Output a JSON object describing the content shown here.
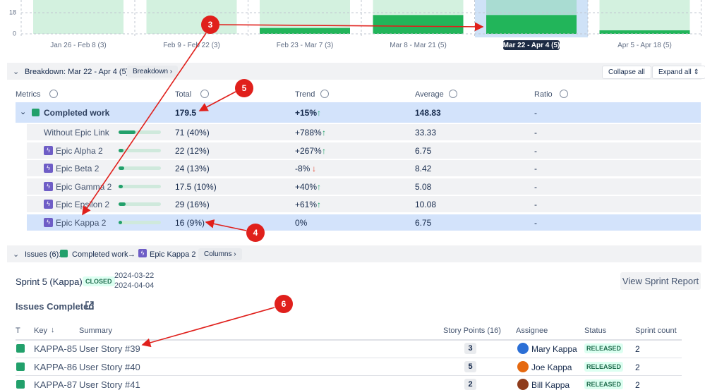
{
  "sprint_chart": {
    "categories": [
      "Jan 26 - Feb 8 (3)",
      "Feb 9 - Feb 22 (3)",
      "Feb 23 - Mar 7 (3)",
      "Mar 8 - Mar 21 (5)",
      "Mar 22 - Apr 4 (5)",
      "Apr 5 - Apr 18 (5)"
    ],
    "completed": [
      0,
      0,
      5,
      16,
      16,
      3
    ],
    "yticks": [
      0,
      18
    ],
    "ylim": [
      0,
      28.8
    ],
    "selected": 4
  },
  "breakdown_bar": {
    "label": "Breakdown: Mar 22 - Apr 4 (5)",
    "button": "Breakdown",
    "collapse": "Collapse all",
    "expand": "Expand all"
  },
  "metrics_table": {
    "headers": [
      "Metrics",
      "Total",
      "Trend",
      "Average",
      "Ratio"
    ],
    "group": {
      "name": "Completed work",
      "total": "179.5",
      "trend": "+15%",
      "trend_arrow": "↑",
      "average": "148.83",
      "ratio": "-"
    },
    "rows": [
      {
        "name": "Without Epic Link",
        "epic": false,
        "total": "71 (40%)",
        "trend": "+788%",
        "trend_arrow": "↑",
        "average": "33.33",
        "ratio": "-"
      },
      {
        "name": "Epic Alpha 2",
        "epic": true,
        "total": "22 (12%)",
        "trend": "+267%",
        "trend_arrow": "↑",
        "average": "6.75",
        "ratio": "-"
      },
      {
        "name": "Epic Beta 2",
        "epic": true,
        "total": "24 (13%)",
        "trend": "-8%",
        "trend_arrow": "↓",
        "average": "8.42",
        "ratio": "-"
      },
      {
        "name": "Epic Gamma 2",
        "epic": true,
        "total": "17.5 (10%)",
        "trend": "+40%",
        "trend_arrow": "↑",
        "average": "5.08",
        "ratio": "-"
      },
      {
        "name": "Epic Epsilon 2",
        "epic": true,
        "total": "29 (16%)",
        "trend": "+61%",
        "trend_arrow": "↑",
        "average": "10.08",
        "ratio": "-"
      },
      {
        "name": "Epic Kappa 2",
        "epic": true,
        "total": "16 (9%)",
        "trend": "0%",
        "average": "6.75",
        "ratio": "-"
      }
    ],
    "selected_row": 5
  },
  "issues_bar": {
    "label": "Issues (6):",
    "metric": "Completed work",
    "arrow": "→",
    "epic": "Epic Kappa 2",
    "button": "Columns"
  },
  "sprint": {
    "name": "Sprint 5 (Kappa)",
    "state": "CLOSED",
    "start": "2024-03-22",
    "end": "2024-04-04",
    "button": "View Sprint Report"
  },
  "issues": {
    "title": "Issues Completed",
    "headers": [
      "T",
      "Key",
      "Summary",
      "Story Points (16)",
      "Assignee",
      "Status",
      "Sprint count"
    ],
    "rows": [
      {
        "key": "KAPPA-85",
        "summary": "User Story #39",
        "points": "3",
        "assignee": "Mary Kappa",
        "status": "RELEASED",
        "sprint_count": "2"
      },
      {
        "key": "KAPPA-86",
        "summary": "User Story #40",
        "points": "5",
        "assignee": "Joe Kappa",
        "status": "RELEASED",
        "sprint_count": "2"
      },
      {
        "key": "KAPPA-87",
        "summary": "User Story #41",
        "points": "2",
        "assignee": "Bill Kappa",
        "status": "RELEASED",
        "sprint_count": "2"
      }
    ]
  },
  "annotations": [
    "3",
    "4",
    "5",
    "6"
  ]
}
